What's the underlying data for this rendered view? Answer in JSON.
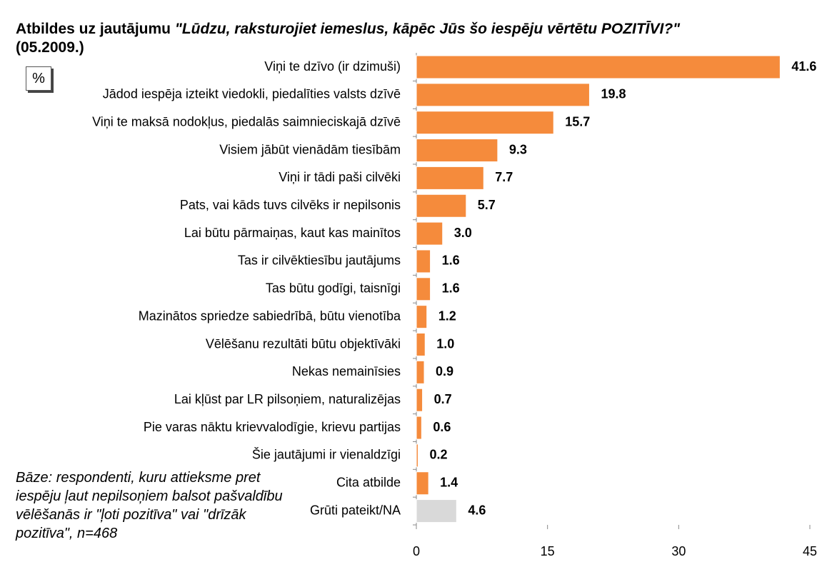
{
  "chart_data": {
    "type": "hbar",
    "title": [
      "Atbildes uz jautājumu",
      "\"Lūdzu, raksturojiet iemeslus, kāpēc Jūs šo iespēju vērtētu POZITĪVI?\"",
      "(05.2009.)"
    ],
    "unit": "%",
    "note": "Bāze: respondenti, kuru attieksme pret iespēju ļaut nepilsoņiem balsot pašvaldību vēlēšanās ir \"ļoti pozitīva\" vai \"drīzāk pozitīva\", n=468",
    "categories": [
      "Viņi te dzīvo (ir dzimuši)",
      "Jādod iespēja izteikt viedokli, piedalīties valsts dzīvē",
      "Viņi te maksā nodokļus, piedalās saimnieciskajā dzīvē",
      "Visiem jābūt vienādām tiesībām",
      "Viņi ir tādi paši cilvēki",
      "Pats, vai kāds tuvs cilvēks ir nepilsonis",
      "Lai būtu pārmaiņas, kaut kas mainītos",
      "Tas ir cilvēktiesību jautājums",
      "Tas būtu godīgi, taisnīgi",
      "Mazinātos spriedze sabiedrībā, būtu vienotība",
      "Vēlēšanu rezultāti būtu objektīvāki",
      "Nekas nemainīsies",
      "Lai kļūst par LR pilsoņiem, naturalizējas",
      "Pie varas nāktu krievvalodīgie, krievu partijas",
      "Šie jautājumi ir vienaldzīgi",
      "Cita atbilde",
      "Grūti pateikt/NA"
    ],
    "values": [
      41.6,
      19.8,
      15.7,
      9.3,
      7.7,
      5.7,
      3.0,
      1.6,
      1.6,
      1.2,
      1.0,
      0.9,
      0.7,
      0.6,
      0.2,
      1.4,
      4.6
    ],
    "value_labels": [
      "41.6",
      "19.8",
      "15.7",
      "9.3",
      "7.7",
      "5.7",
      "3.0",
      "1.6",
      "1.6",
      "1.2",
      "1.0",
      "0.9",
      "0.7",
      "0.6",
      "0.2",
      "1.4",
      "4.6"
    ],
    "colors": [
      "#f58b3c",
      "#f58b3c",
      "#f58b3c",
      "#f58b3c",
      "#f58b3c",
      "#f58b3c",
      "#f58b3c",
      "#f58b3c",
      "#f58b3c",
      "#f58b3c",
      "#f58b3c",
      "#f58b3c",
      "#f58b3c",
      "#f58b3c",
      "#f58b3c",
      "#f58b3c",
      "#d9d9d9"
    ],
    "xlim": [
      0,
      45
    ],
    "xticks": [
      0,
      15,
      30,
      45
    ]
  }
}
